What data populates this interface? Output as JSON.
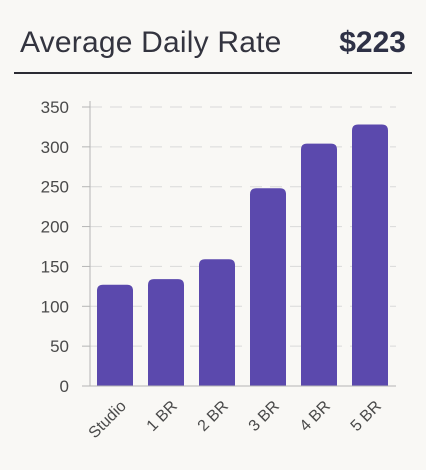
{
  "header": {
    "title": "Average Daily Rate",
    "metric": "$223"
  },
  "colors": {
    "bar": "#5b49ad",
    "grid": "#d9d9d9",
    "axis": "#b5b5b5"
  },
  "chart_data": {
    "type": "bar",
    "categories": [
      "Studio",
      "1 BR",
      "2 BR",
      "3 BR",
      "4 BR",
      "5 BR"
    ],
    "values": [
      127,
      134,
      159,
      248,
      304,
      328
    ],
    "ylim": [
      0,
      350
    ],
    "yticks": [
      0,
      50,
      100,
      150,
      200,
      250,
      300,
      350
    ],
    "grid": true
  }
}
